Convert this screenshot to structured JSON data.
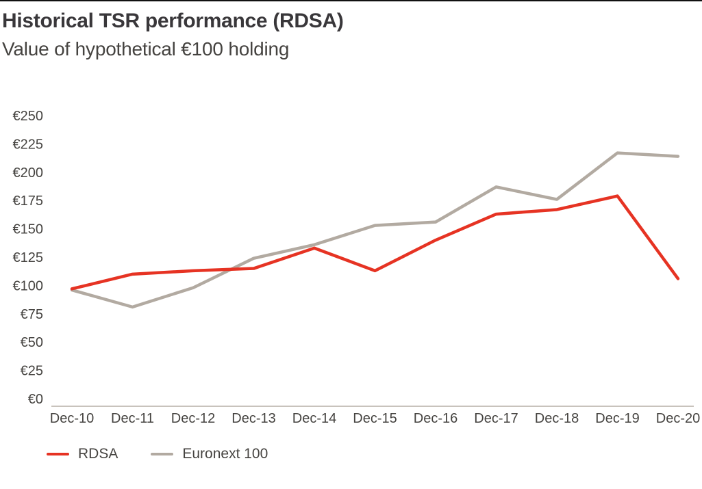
{
  "page": {
    "title": "Historical TSR performance (RDSA)",
    "subtitle": "Value of hypothetical €100 holding"
  },
  "chart_data": {
    "type": "line",
    "title": "Historical TSR performance (RDSA)",
    "subtitle": "Value of hypothetical €100 holding",
    "x_categories": [
      "Dec-10",
      "Dec-11",
      "Dec-12",
      "Dec-13",
      "Dec-14",
      "Dec-15",
      "Dec-16",
      "Dec-17",
      "Dec-18",
      "Dec-19",
      "Dec-20"
    ],
    "series": [
      {
        "name": "RDSA",
        "color": "#e63323",
        "values": [
          97,
          110,
          113,
          115,
          133,
          113,
          140,
          163,
          167,
          179,
          106
        ]
      },
      {
        "name": "Euronext 100",
        "color": "#b2aaa1",
        "values": [
          96,
          81,
          98,
          124,
          136,
          153,
          156,
          187,
          176,
          217,
          214
        ]
      }
    ],
    "ylim": [
      0,
      250
    ],
    "ytick_step": 25,
    "ytick_prefix": "€",
    "grid": false,
    "legend_position": "bottom-left"
  },
  "colors": {
    "axis_line": "#c8c3bc",
    "tick_text": "#454340",
    "title_text": "#39373a",
    "background": "#ffffff"
  }
}
